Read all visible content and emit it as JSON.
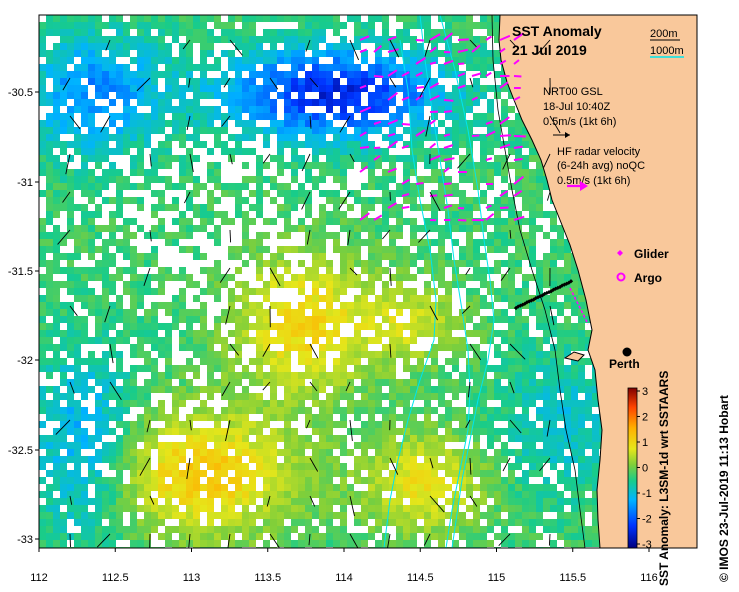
{
  "title": {
    "line1": "SST Anomaly",
    "line2": "21 Jul 2019"
  },
  "depth_legend": {
    "label_200": "200m",
    "label_1000": "1000m",
    "color_200": "#000000",
    "color_1000": "#00e5ee"
  },
  "velocity_legend": {
    "gsl_title": "NRT00 GSL",
    "gsl_date": "18-Jul 10:40Z",
    "gsl_scale": "0.5m/s (1kt 6h)",
    "hf_title": "HF radar velocity",
    "hf_sub": "(6-24h avg) noQC",
    "hf_scale": "0.5m/s (1kt 6h)",
    "hf_color": "#ff00ff"
  },
  "markers": {
    "glider_label": "Glider",
    "argo_label": "Argo",
    "perth_label": "Perth",
    "marker_color": "#ff00ff"
  },
  "axes": {
    "x_ticks": [
      "112",
      "112.5",
      "113",
      "113.5",
      "114",
      "114.5",
      "115",
      "115.5",
      "116"
    ],
    "y_ticks": [
      "-30.5",
      "-31",
      "-31.5",
      "-32",
      "-32.5",
      "-33"
    ]
  },
  "colorbar": {
    "ticks": [
      "3",
      "2",
      "1",
      "0",
      "-1",
      "-2",
      "-3"
    ],
    "label": "SST Anomaly: L3SM-1d wrt SSTAARS"
  },
  "credit": "© IMOS 23-Jul-2019 11:13 Hobart",
  "colors": {
    "land": "#f9c89b",
    "frame": "#000000",
    "isobath_1000": "#00e5ee"
  }
}
